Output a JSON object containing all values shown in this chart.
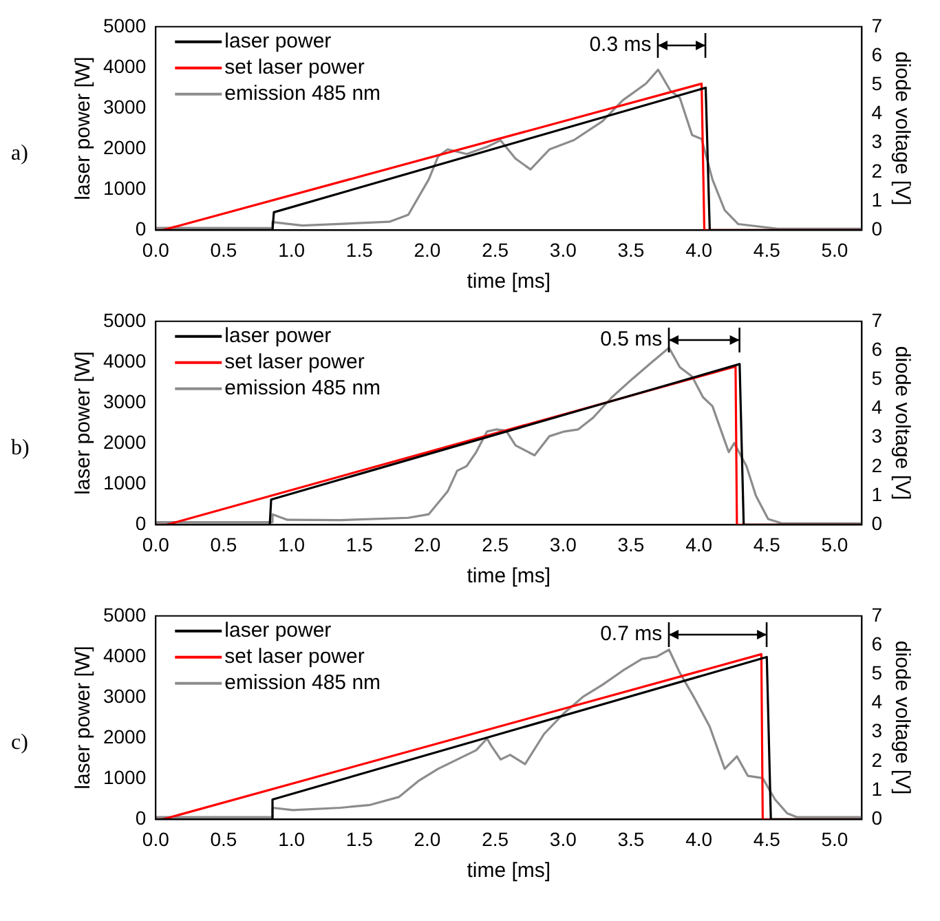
{
  "chart_data": [
    {
      "type": "line",
      "annotations": [
        "a)",
        "0.3 ms"
      ],
      "xlabel": "time [ms]",
      "ylabel": "laser power [W]",
      "y2label": "diode voltage [V]",
      "legend": "top left",
      "xlim": [
        0,
        5.2
      ],
      "xticks": [
        {
          "value": 0,
          "label": "0.0"
        },
        {
          "value": 0.5,
          "label": "0.5"
        },
        {
          "value": 1,
          "label": "1.0"
        },
        {
          "value": 1.5,
          "label": "1.5"
        },
        {
          "value": 2,
          "label": "2.0"
        },
        {
          "value": 2.5,
          "label": "2.5"
        },
        {
          "value": 3,
          "label": "3.0"
        },
        {
          "value": 3.5,
          "label": "3.5"
        },
        {
          "value": 4,
          "label": "4.0"
        },
        {
          "value": 4.5,
          "label": "4.5"
        },
        {
          "value": 5,
          "label": "5.0"
        }
      ],
      "ylim": [
        0,
        5000
      ],
      "yticks": [
        0,
        1000,
        2000,
        3000,
        4000,
        5000
      ],
      "y2lim": [
        0,
        7
      ],
      "y2ticks": [
        0,
        1,
        2,
        3,
        4,
        5,
        6,
        7
      ],
      "series": [
        {
          "name": "laser power",
          "color": "#000000",
          "x": [
            0,
            0.86,
            0.87,
            4.05,
            4.08,
            5.2
          ],
          "values": [
            0,
            0,
            440,
            3500,
            0,
            0
          ]
        },
        {
          "name": "set laser power",
          "color": "#ff0000",
          "x": [
            0,
            0.05,
            4.02,
            4.04,
            5.2
          ],
          "values": [
            0,
            0,
            3600,
            0,
            0
          ]
        },
        {
          "name": "emission 485 nm",
          "color": "#8c8c8c",
          "axis": "y2",
          "x": [
            0,
            0.85,
            0.86,
            1.08,
            1.72,
            1.86,
            2.01,
            2.08,
            2.15,
            2.29,
            2.44,
            2.54,
            2.65,
            2.76,
            2.9,
            3.08,
            3.29,
            3.44,
            3.61,
            3.7,
            3.79,
            3.86,
            3.95,
            4.02,
            4.1,
            4.19,
            4.29,
            4.58,
            5.2
          ],
          "values": [
            0.08,
            0.07,
            0.28,
            0.16,
            0.29,
            0.53,
            1.74,
            2.54,
            2.78,
            2.62,
            2.87,
            3.09,
            2.46,
            2.09,
            2.78,
            3.1,
            3.75,
            4.47,
            5.04,
            5.52,
            4.8,
            4.55,
            3.27,
            3.14,
            1.74,
            0.69,
            0.21,
            0.05,
            0.05
          ]
        }
      ]
    },
    {
      "type": "line",
      "annotations": [
        "b)",
        "0.5 ms"
      ],
      "xlabel": "time [ms]",
      "ylabel": "laser power [W]",
      "y2label": "diode voltage [V]",
      "legend": "top left",
      "xlim": [
        0,
        5.2
      ],
      "xticks": [
        {
          "value": 0,
          "label": "0.0"
        },
        {
          "value": 0.5,
          "label": "0.5"
        },
        {
          "value": 1,
          "label": "1.0"
        },
        {
          "value": 1.5,
          "label": "1.5"
        },
        {
          "value": 2,
          "label": "2.0"
        },
        {
          "value": 2.5,
          "label": "2.5"
        },
        {
          "value": 3,
          "label": "3.0"
        },
        {
          "value": 3.5,
          "label": "3.5"
        },
        {
          "value": 4,
          "label": "4.0"
        },
        {
          "value": 4.5,
          "label": "4.5"
        },
        {
          "value": 5,
          "label": "5.0"
        }
      ],
      "ylim": [
        0,
        5000
      ],
      "yticks": [
        0,
        1000,
        2000,
        3000,
        4000,
        5000
      ],
      "y2lim": [
        0,
        7
      ],
      "y2ticks": [
        0,
        1,
        2,
        3,
        4,
        5,
        6,
        7
      ],
      "series": [
        {
          "name": "laser power",
          "color": "#000000",
          "x": [
            0,
            0.84,
            0.85,
            4.3,
            4.33,
            5.2
          ],
          "values": [
            0,
            0,
            620,
            3950,
            0,
            0
          ]
        },
        {
          "name": "set laser power",
          "color": "#ff0000",
          "x": [
            0,
            0.08,
            4.27,
            4.28,
            5.2
          ],
          "values": [
            0,
            0,
            3890,
            0,
            0
          ]
        },
        {
          "name": "emission 485 nm",
          "color": "#8c8c8c",
          "axis": "y2",
          "x": [
            0,
            0.85,
            0.86,
            0.97,
            1.36,
            1.86,
            2.01,
            2.15,
            2.22,
            2.29,
            2.36,
            2.44,
            2.51,
            2.58,
            2.65,
            2.79,
            2.9,
            3.01,
            3.11,
            3.22,
            3.36,
            3.51,
            3.65,
            3.78,
            3.86,
            3.95,
            4.03,
            4.1,
            4.19,
            4.22,
            4.26,
            4.35,
            4.42,
            4.51,
            4.61,
            5.2
          ],
          "values": [
            0.09,
            0.09,
            0.36,
            0.17,
            0.16,
            0.24,
            0.36,
            1.15,
            1.86,
            2.02,
            2.5,
            3.21,
            3.28,
            3.24,
            2.73,
            2.39,
            3.05,
            3.21,
            3.28,
            3.68,
            4.39,
            5.02,
            5.58,
            6.09,
            5.42,
            5.1,
            4.39,
            4.08,
            2.89,
            2.5,
            2.81,
            2.02,
            1.0,
            0.2,
            0.05,
            0.05
          ]
        }
      ]
    },
    {
      "type": "line",
      "annotations": [
        "c)",
        "0.7 ms"
      ],
      "xlabel": "time [ms]",
      "ylabel": "laser power [W]",
      "y2label": "diode voltage [V]",
      "legend": "top left",
      "xlim": [
        0,
        5.2
      ],
      "xticks": [
        {
          "value": 0,
          "label": "0.0"
        },
        {
          "value": 0.5,
          "label": "0.5"
        },
        {
          "value": 1,
          "label": "1.0"
        },
        {
          "value": 1.5,
          "label": "1.5"
        },
        {
          "value": 2,
          "label": "2.0"
        },
        {
          "value": 2.5,
          "label": "2.5"
        },
        {
          "value": 3,
          "label": "3.0"
        },
        {
          "value": 3.5,
          "label": "3.5"
        },
        {
          "value": 4,
          "label": "4.0"
        },
        {
          "value": 4.5,
          "label": "4.5"
        },
        {
          "value": 5,
          "label": "5.0"
        }
      ],
      "ylim": [
        0,
        5000
      ],
      "yticks": [
        0,
        1000,
        2000,
        3000,
        4000,
        5000
      ],
      "y2lim": [
        0,
        7
      ],
      "y2ticks": [
        0,
        1,
        2,
        3,
        4,
        5,
        6,
        7
      ],
      "series": [
        {
          "name": "laser power",
          "color": "#000000",
          "x": [
            0,
            0.85,
            0.86,
            4.5,
            4.53,
            5.2
          ],
          "values": [
            0,
            0,
            490,
            3990,
            0,
            0
          ]
        },
        {
          "name": "set laser power",
          "color": "#ff0000",
          "x": [
            0,
            0.05,
            4.46,
            4.47,
            5.2
          ],
          "values": [
            0,
            0,
            4060,
            0,
            0
          ]
        },
        {
          "name": "emission 485 nm",
          "color": "#8c8c8c",
          "axis": "y2",
          "x": [
            0,
            0.85,
            0.86,
            1.01,
            1.36,
            1.58,
            1.79,
            1.94,
            2.08,
            2.22,
            2.36,
            2.44,
            2.47,
            2.54,
            2.61,
            2.72,
            2.86,
            3.01,
            3.15,
            3.29,
            3.44,
            3.58,
            3.69,
            3.78,
            3.86,
            3.97,
            4.08,
            4.19,
            4.28,
            4.36,
            4.47,
            4.56,
            4.65,
            4.72,
            5.2
          ],
          "values": [
            0.08,
            0.08,
            0.4,
            0.32,
            0.4,
            0.5,
            0.77,
            1.34,
            1.74,
            2.06,
            2.38,
            2.78,
            2.54,
            2.06,
            2.22,
            1.9,
            2.94,
            3.67,
            4.23,
            4.63,
            5.12,
            5.52,
            5.6,
            5.84,
            5.04,
            4.15,
            3.19,
            1.74,
            2.17,
            1.5,
            1.42,
            0.69,
            0.21,
            0.08,
            0.08
          ]
        }
      ]
    }
  ]
}
